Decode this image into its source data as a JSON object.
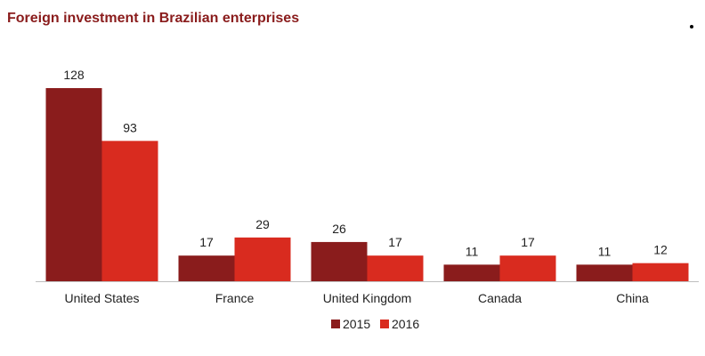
{
  "chart_data": {
    "type": "bar",
    "title": "Foreign investment in Brazilian enterprises",
    "categories": [
      "United States",
      "France",
      "United Kingdom",
      "Canada",
      "China"
    ],
    "series": [
      {
        "name": "2015",
        "color": "#8a1c1c",
        "values": [
          128,
          17,
          26,
          11,
          11
        ]
      },
      {
        "name": "2016",
        "color": "#d92b1f",
        "values": [
          93,
          29,
          17,
          17,
          12
        ]
      }
    ],
    "xlabel": "",
    "ylabel": "",
    "ylim": [
      0,
      128
    ],
    "grid": false,
    "legend_position": "bottom-center"
  }
}
